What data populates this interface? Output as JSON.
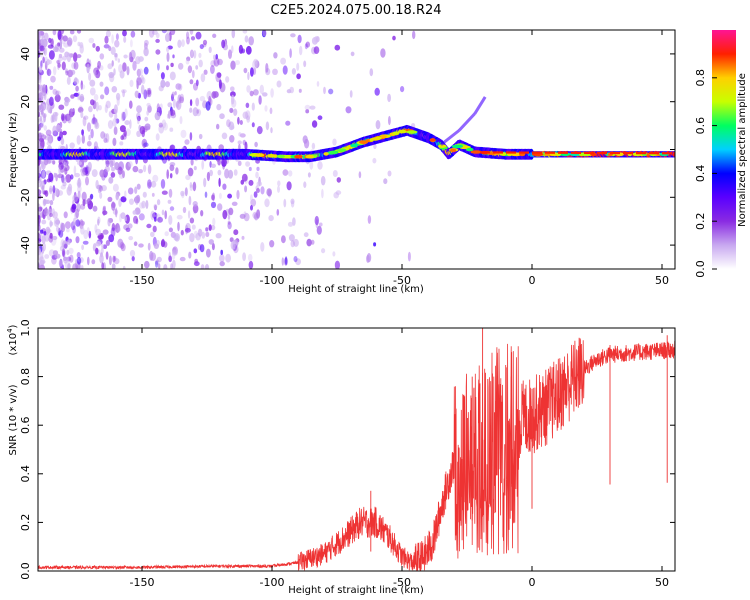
{
  "title": "C2E5.2024.075.00.18.R24",
  "chart_data": [
    {
      "type": "heatmap",
      "xlabel": "Height of straight line (km)",
      "ylabel": "Frequency (Hz)",
      "xlim": [
        -190,
        55
      ],
      "ylim": [
        -50,
        50
      ],
      "x_ticks": [
        -150,
        -100,
        -50,
        0,
        50
      ],
      "y_ticks": [
        -40,
        -20,
        0,
        20,
        40
      ],
      "colorbar": {
        "label": "Normalized spectral amplitude",
        "range": [
          0,
          1
        ],
        "ticks": [
          0.0,
          0.2,
          0.4,
          0.6,
          0.8
        ],
        "colors": [
          "#ffffff",
          "#c8a8f0",
          "#8a2be2",
          "#5a00ff",
          "#0000ff",
          "#00d0ff",
          "#00ff60",
          "#c8ff00",
          "#ffd000",
          "#ff2000",
          "#ff1493"
        ]
      },
      "ridge": [
        {
          "x": -190,
          "y": -2
        },
        {
          "x": -150,
          "y": -2
        },
        {
          "x": -110,
          "y": -2
        },
        {
          "x": -95,
          "y": -3
        },
        {
          "x": -85,
          "y": -3
        },
        {
          "x": -75,
          "y": -1
        },
        {
          "x": -65,
          "y": 3
        },
        {
          "x": -55,
          "y": 6
        },
        {
          "x": -48,
          "y": 8
        },
        {
          "x": -40,
          "y": 5
        },
        {
          "x": -35,
          "y": 2
        },
        {
          "x": -32,
          "y": -2
        },
        {
          "x": -28,
          "y": 2
        },
        {
          "x": -22,
          "y": -1
        },
        {
          "x": -10,
          "y": -2
        },
        {
          "x": 0,
          "y": -2
        },
        {
          "x": 25,
          "y": -2
        },
        {
          "x": 55,
          "y": -2
        }
      ],
      "branch": [
        {
          "x": -35,
          "y": 2
        },
        {
          "x": -28,
          "y": 8
        },
        {
          "x": -22,
          "y": 15
        },
        {
          "x": -18,
          "y": 22
        }
      ]
    },
    {
      "type": "line",
      "xlabel": "Height of straight line (km)",
      "ylabel": "SNR (10 * v/v)",
      "y_multiplier": "(x10",
      "y_multiplier_exp": "4",
      "y_multiplier_close": ")",
      "xlim": [
        -190,
        55
      ],
      "ylim": [
        0,
        1.0
      ],
      "x_ticks": [
        -150,
        -100,
        -50,
        0,
        50
      ],
      "y_ticks": [
        0.0,
        0.2,
        0.4,
        0.6,
        0.8,
        1.0
      ],
      "color": "#ee3333",
      "envelope": [
        {
          "x": -190,
          "y": 0.015
        },
        {
          "x": -150,
          "y": 0.015
        },
        {
          "x": -120,
          "y": 0.02
        },
        {
          "x": -100,
          "y": 0.02
        },
        {
          "x": -90,
          "y": 0.035
        },
        {
          "x": -80,
          "y": 0.07
        },
        {
          "x": -72,
          "y": 0.14
        },
        {
          "x": -66,
          "y": 0.2
        },
        {
          "x": -60,
          "y": 0.2
        },
        {
          "x": -55,
          "y": 0.14
        },
        {
          "x": -50,
          "y": 0.06
        },
        {
          "x": -46,
          "y": 0.035
        },
        {
          "x": -42,
          "y": 0.05
        },
        {
          "x": -38,
          "y": 0.12
        },
        {
          "x": -34,
          "y": 0.3
        },
        {
          "x": -30,
          "y": 0.45
        },
        {
          "x": -25,
          "y": 0.5
        },
        {
          "x": -20,
          "y": 0.55
        },
        {
          "x": -15,
          "y": 0.6
        },
        {
          "x": -10,
          "y": 0.62
        },
        {
          "x": -5,
          "y": 0.62
        },
        {
          "x": 0,
          "y": 0.64
        },
        {
          "x": 5,
          "y": 0.67
        },
        {
          "x": 10,
          "y": 0.72
        },
        {
          "x": 15,
          "y": 0.78
        },
        {
          "x": 20,
          "y": 0.83
        },
        {
          "x": 25,
          "y": 0.87
        },
        {
          "x": 30,
          "y": 0.89
        },
        {
          "x": 40,
          "y": 0.9
        },
        {
          "x": 55,
          "y": 0.91
        }
      ],
      "spikes": [
        {
          "x": -62,
          "y": 0.33
        },
        {
          "x": -23,
          "y": 0.8
        },
        {
          "x": -19,
          "y": 1.0
        },
        {
          "x": -17,
          "y": 0.79
        },
        {
          "x": -14,
          "y": 0.7
        },
        {
          "x": -8,
          "y": 0.8
        },
        {
          "x": 0,
          "y": 0.75
        },
        {
          "x": 30,
          "y": 0.93
        },
        {
          "x": 52,
          "y": 0.97
        }
      ]
    }
  ]
}
